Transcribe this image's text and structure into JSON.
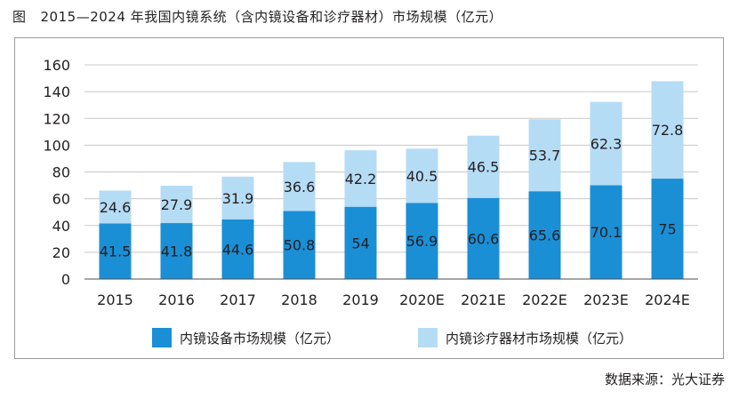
{
  "figure": {
    "label": "图",
    "title": "2015—2024 年我国内镜系统（含内镜设备和诊疗器材）市场规模（亿元）"
  },
  "source": "数据来源：光大证券",
  "colors": {
    "series1": "#1a8fd6",
    "series2": "#b5dcf5",
    "grid": "#c8c8c8",
    "axis": "#4d4d4d",
    "text": "#231f20"
  },
  "chart_data": {
    "type": "bar",
    "stacked": true,
    "categories": [
      "2015",
      "2016",
      "2017",
      "2018",
      "2019",
      "2020E",
      "2021E",
      "2022E",
      "2023E",
      "2024E"
    ],
    "series": [
      {
        "name": "内镜设备市场规模（亿元）",
        "values": [
          41.5,
          41.8,
          44.6,
          50.8,
          54,
          56.9,
          60.6,
          65.6,
          70.1,
          75
        ]
      },
      {
        "name": "内镜诊疗器材市场规模（亿元）",
        "values": [
          24.6,
          27.9,
          31.9,
          36.6,
          42.2,
          40.5,
          46.5,
          53.7,
          62.3,
          72.8
        ]
      }
    ],
    "ylim": [
      0,
      160
    ],
    "yticks": [
      0,
      20,
      40,
      60,
      80,
      100,
      120,
      140,
      160
    ],
    "grid": true,
    "legend_position": "bottom"
  }
}
